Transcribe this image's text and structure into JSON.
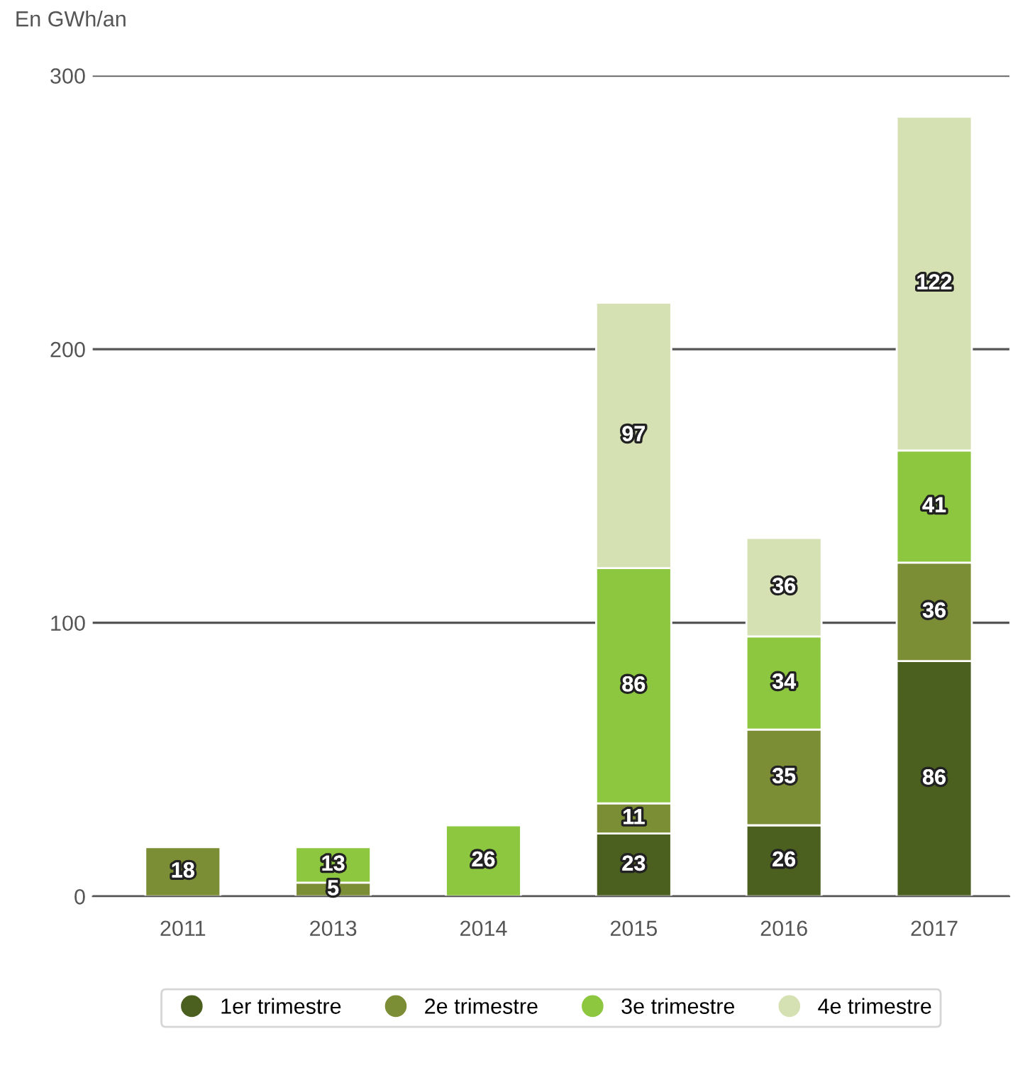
{
  "chart_data": {
    "type": "bar",
    "stacked": true,
    "ylabel": "En GWh/an",
    "categories": [
      "2011",
      "2013",
      "2014",
      "2015",
      "2016",
      "2017"
    ],
    "series": [
      {
        "name": "1er trimestre",
        "color": "#4b5f1f",
        "values": [
          null,
          null,
          null,
          23,
          26,
          86
        ]
      },
      {
        "name": "2e trimestre",
        "color": "#7b8d35",
        "values": [
          18,
          5,
          null,
          11,
          35,
          36
        ]
      },
      {
        "name": "3e trimestre",
        "color": "#8dc63f",
        "values": [
          null,
          13,
          26,
          86,
          34,
          41
        ]
      },
      {
        "name": "4e trimestre",
        "color": "#d5e0b3",
        "values": [
          null,
          null,
          null,
          97,
          36,
          122
        ]
      }
    ],
    "ylim": [
      0,
      300
    ],
    "yticks": [
      0,
      100,
      200,
      300
    ],
    "grid": "y",
    "legend": "bottom",
    "data_labels": true,
    "marker": "circle"
  }
}
